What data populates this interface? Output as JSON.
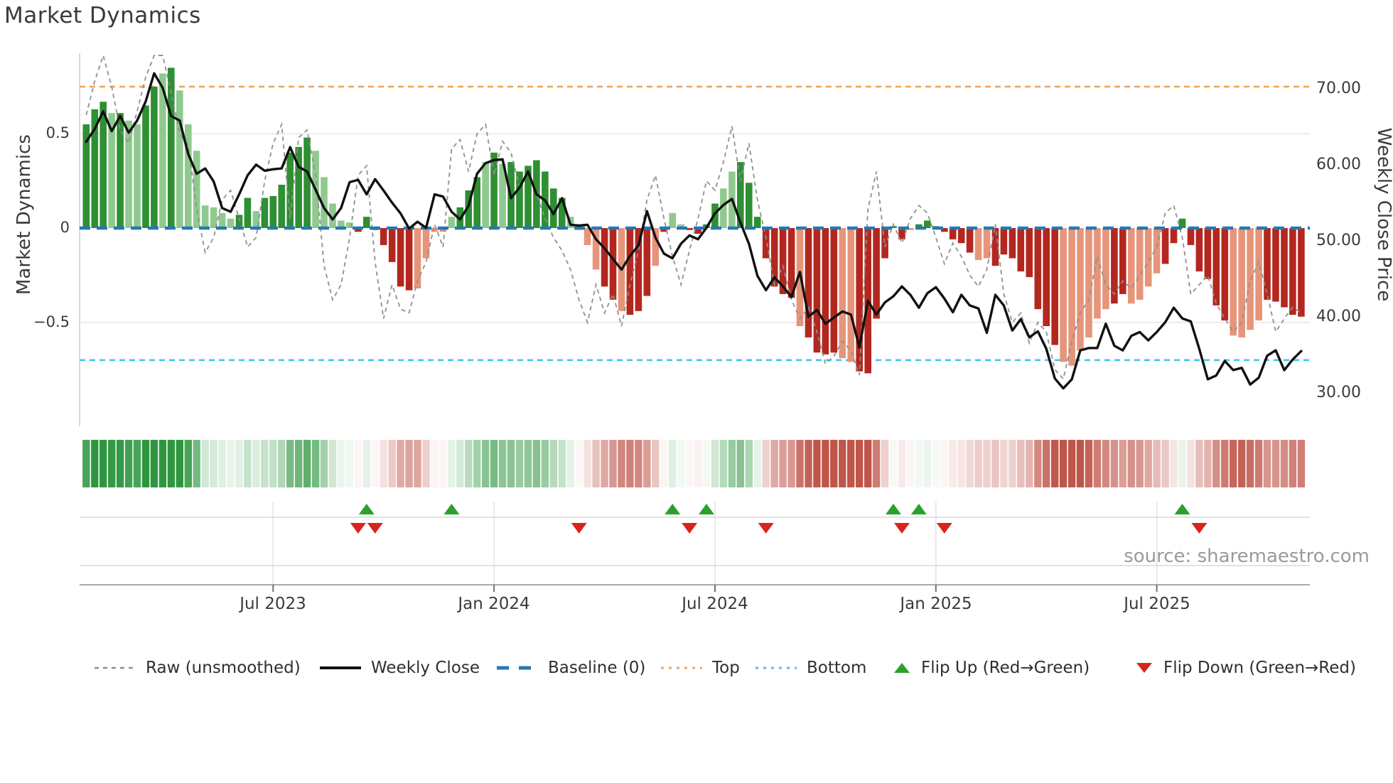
{
  "chart": {
    "title": "Market Dynamics"
  },
  "axes": {
    "left": {
      "title": "Market Dynamics",
      "ticks": [
        {
          "label": "0.5",
          "value": 0.5
        },
        {
          "label": "0",
          "value": 0
        },
        {
          "label": "−0.5",
          "value": -0.5
        }
      ]
    },
    "right": {
      "title": "Weekly Close Price",
      "ticks": [
        {
          "label": "70.00",
          "value": 70
        },
        {
          "label": "60.00",
          "value": 60
        },
        {
          "label": "50.00",
          "value": 50
        },
        {
          "label": "40.00",
          "value": 40
        },
        {
          "label": "30.00",
          "value": 30
        }
      ]
    },
    "x": {
      "ticks": [
        {
          "label": "Jul 2023",
          "week": 22
        },
        {
          "label": "Jan 2024",
          "week": 48
        },
        {
          "label": "Jul 2024",
          "week": 74
        },
        {
          "label": "Jan 2025",
          "week": 100
        },
        {
          "label": "Jul 2025",
          "week": 126
        }
      ]
    }
  },
  "source": "source: sharemaestro.com",
  "legend": [
    {
      "label": "Raw (unsmoothed)",
      "type": "dash-line",
      "color": "#8f8f8f"
    },
    {
      "label": "Weekly Close",
      "type": "solid-line",
      "color": "#111111"
    },
    {
      "label": "Baseline (0)",
      "type": "long-dash",
      "color": "#2777b4"
    },
    {
      "label": "Top",
      "type": "dot-line",
      "color": "#f2a35a"
    },
    {
      "label": "Bottom",
      "type": "dot-line",
      "color": "#45c6ee"
    },
    {
      "label": "Flip Up (Red→Green)",
      "type": "tri-up",
      "color": "#2ca02c"
    },
    {
      "label": "Flip Down (Green→Red)",
      "type": "tri-down",
      "color": "#d8241f"
    }
  ],
  "colors": {
    "bar_green_dark": "#2e8f33",
    "bar_green_light": "#8fc98f",
    "bar_red_dark": "#b3271f",
    "bar_red_light": "#e6957a",
    "close_line": "#111111",
    "raw_line": "#8f8f8f",
    "baseline": "#2777b4",
    "top_line": "#f2a35a",
    "bottom_line": "#45c6ee",
    "flip_up": "#2ca02c",
    "flip_down": "#d8241f",
    "heat_green": "#2f9640",
    "heat_red": "#c0554a",
    "grid": "#e8e8eb",
    "spine": "#d4d4d8",
    "panel_grid": "#d8d8dc",
    "panel_axis": "#a8a8ad"
  },
  "chart_data": {
    "type": "bar+line combo with heatmap strip and flip markers",
    "title": "Market Dynamics",
    "n_weeks": 144,
    "x_tick_labels": [
      "Jul 2023",
      "Jan 2024",
      "Jul 2024",
      "Jan 2025",
      "Jul 2025"
    ],
    "ylabel_left": "Market Dynamics",
    "ylabel_right": "Weekly Close Price",
    "ylim_left": [
      -1.05,
      0.93
    ],
    "ylim_right": [
      25.7,
      74.7
    ],
    "baseline": 0,
    "top_threshold": 0.75,
    "bottom_threshold": -0.7,
    "grid": "horizontal at ±0.5 on left axis",
    "legend_position": "bottom row",
    "oscillator": [
      0.55,
      0.63,
      0.67,
      0.61,
      0.61,
      0.57,
      0.55,
      0.65,
      0.75,
      0.82,
      0.85,
      0.73,
      0.55,
      0.41,
      0.12,
      0.11,
      0.08,
      0.05,
      0.07,
      0.16,
      0.09,
      0.16,
      0.17,
      0.23,
      0.4,
      0.43,
      0.48,
      0.41,
      0.27,
      0.13,
      0.04,
      0.03,
      -0.02,
      0.06,
      -0.01,
      -0.09,
      -0.18,
      -0.31,
      -0.33,
      -0.32,
      -0.16,
      -0.02,
      -0.02,
      0.06,
      0.11,
      0.2,
      0.27,
      0.35,
      0.4,
      0.34,
      0.35,
      0.3,
      0.33,
      0.36,
      0.3,
      0.21,
      0.16,
      0.06,
      -0.01,
      -0.09,
      -0.22,
      -0.31,
      -0.38,
      -0.44,
      -0.46,
      -0.44,
      -0.36,
      -0.2,
      -0.02,
      0.08,
      0.02,
      -0.01,
      -0.03,
      0.02,
      0.13,
      0.21,
      0.3,
      0.35,
      0.24,
      0.06,
      -0.16,
      -0.31,
      -0.35,
      -0.37,
      -0.52,
      -0.58,
      -0.66,
      -0.67,
      -0.66,
      -0.69,
      -0.71,
      -0.76,
      -0.77,
      -0.48,
      -0.16,
      0.01,
      -0.06,
      -0.01,
      0.02,
      0.04,
      0.01,
      -0.02,
      -0.06,
      -0.08,
      -0.13,
      -0.17,
      -0.16,
      -0.2,
      -0.14,
      -0.16,
      -0.23,
      -0.26,
      -0.43,
      -0.52,
      -0.62,
      -0.71,
      -0.73,
      -0.65,
      -0.58,
      -0.48,
      -0.43,
      -0.4,
      -0.35,
      -0.4,
      -0.38,
      -0.31,
      -0.24,
      -0.19,
      -0.08,
      0.05,
      -0.09,
      -0.23,
      -0.27,
      -0.41,
      -0.49,
      -0.57,
      -0.58,
      -0.54,
      -0.49,
      -0.38,
      -0.39,
      -0.42,
      -0.46,
      -0.47
    ],
    "oscillator_shade": "dddldlldd l dlllllllddldddddd llllldddddd dlllllddd ldlddddddd llllddlddd ldllddddll dddddddldd ddllddddd dlddddddd lldddddddd llllllddll lldddddddd lllldddd",
    "raw": [
      0.6,
      0.78,
      0.95,
      0.75,
      0.52,
      0.45,
      0.62,
      0.8,
      0.93,
      0.92,
      0.72,
      0.5,
      0.44,
      0.1,
      -0.13,
      -0.05,
      0.15,
      0.2,
      0.05,
      -0.1,
      -0.05,
      0.25,
      0.45,
      0.55,
      0.05,
      0.48,
      0.52,
      0.28,
      -0.2,
      -0.38,
      -0.3,
      -0.05,
      0.28,
      0.33,
      -0.18,
      -0.48,
      -0.3,
      -0.43,
      -0.45,
      -0.28,
      -0.18,
      0.02,
      -0.1,
      0.42,
      0.47,
      0.3,
      0.5,
      0.55,
      0.28,
      0.46,
      0.4,
      0.22,
      0.3,
      0.18,
      0.05,
      -0.05,
      -0.12,
      -0.22,
      -0.38,
      -0.5,
      -0.3,
      -0.45,
      -0.35,
      -0.52,
      -0.3,
      -0.12,
      0.15,
      0.28,
      0.05,
      -0.15,
      -0.3,
      -0.12,
      0.05,
      0.25,
      0.2,
      0.35,
      0.54,
      0.25,
      0.45,
      0.15,
      -0.05,
      -0.3,
      -0.2,
      -0.38,
      -0.48,
      -0.42,
      -0.55,
      -0.72,
      -0.68,
      -0.6,
      -0.65,
      -0.78,
      0.1,
      0.3,
      -0.1,
      0.02,
      -0.08,
      0.05,
      0.12,
      0.08,
      -0.05,
      -0.19,
      -0.08,
      -0.15,
      -0.25,
      -0.31,
      -0.22,
      0.02,
      -0.35,
      -0.5,
      -0.45,
      -0.61,
      -0.5,
      -0.55,
      -0.75,
      -0.8,
      -0.6,
      -0.45,
      -0.38,
      -0.15,
      -0.3,
      -0.35,
      -0.28,
      -0.32,
      -0.25,
      -0.18,
      -0.1,
      0.08,
      0.12,
      -0.05,
      -0.35,
      -0.3,
      -0.25,
      -0.4,
      -0.48,
      -0.55,
      -0.5,
      -0.28,
      -0.18,
      -0.35,
      -0.55,
      -0.48,
      -0.42,
      -0.45
    ],
    "weekly_close": [
      63.1,
      64.8,
      67.1,
      64.5,
      66.5,
      64.3,
      65.9,
      68.4,
      72.1,
      70.2,
      66.5,
      65.9,
      61.5,
      58.9,
      59.6,
      57.9,
      54.4,
      53.9,
      56.2,
      58.7,
      60.1,
      59.3,
      59.5,
      59.6,
      62.4,
      59.8,
      59.2,
      56.8,
      54.4,
      52.9,
      54.4,
      57.8,
      58.1,
      56.2,
      58.2,
      56.7,
      55.1,
      53.7,
      51.7,
      52.6,
      51.8,
      56.2,
      55.9,
      53.9,
      52.9,
      54.7,
      58.9,
      60.3,
      60.7,
      60.8,
      55.7,
      57.1,
      59.2,
      56.2,
      55.4,
      53.6,
      55.7,
      52.2,
      52.1,
      52.2,
      50.3,
      49.1,
      47.7,
      46.3,
      48.1,
      49.5,
      54.0,
      50.5,
      48.4,
      47.8,
      49.7,
      50.8,
      50.3,
      51.8,
      53.7,
      54.8,
      55.6,
      52.5,
      49.7,
      45.5,
      43.6,
      45.3,
      44.1,
      42.7,
      46.0,
      40.1,
      41.0,
      39.2,
      40.0,
      40.8,
      40.4,
      36.1,
      42.2,
      40.4,
      42.0,
      42.8,
      44.1,
      43.0,
      41.3,
      43.2,
      44.0,
      42.5,
      40.7,
      43.0,
      41.6,
      41.2,
      38.0,
      43.0,
      41.6,
      38.3,
      39.8,
      37.4,
      38.2,
      35.9,
      32.0,
      30.7,
      31.9,
      35.7,
      36.0,
      36.0,
      39.2,
      36.3,
      35.7,
      37.6,
      38.1,
      37.0,
      38.1,
      39.4,
      41.3,
      39.9,
      39.5,
      35.9,
      31.9,
      32.4,
      34.3,
      33.1,
      33.4,
      31.2,
      32.1,
      35.0,
      35.7,
      33.1,
      34.5,
      35.6
    ],
    "flip_up_weeks": [
      33,
      43,
      69,
      73,
      95,
      98,
      129
    ],
    "flip_down_weeks": [
      32,
      34,
      58,
      71,
      80,
      96,
      101,
      131
    ],
    "heatmap": "same weekly oscillator values rendered as green→white→red color strip"
  }
}
